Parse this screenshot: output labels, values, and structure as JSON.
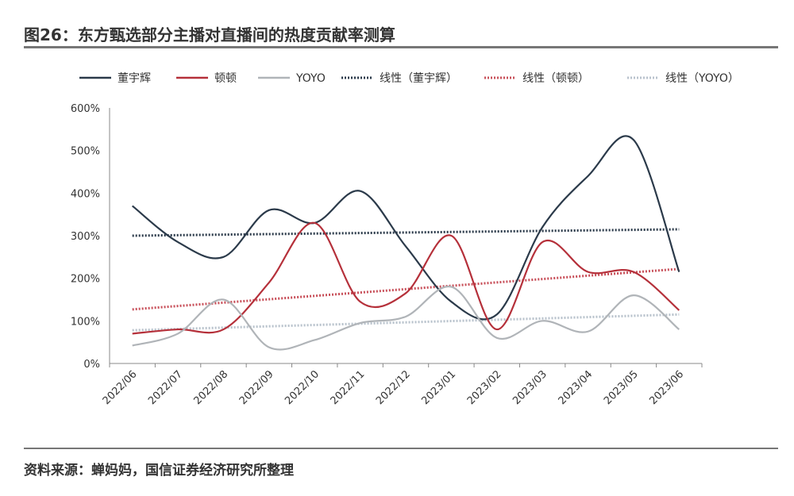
{
  "title": "图26：东方甄选部分主播对直播间的热度贡献率测算",
  "source": "资料来源：蝉妈妈，国信证券经济研究所整理",
  "chart_data": {
    "type": "line",
    "categories": [
      "2022/06",
      "2022/07",
      "2022/08",
      "2022/09",
      "2022/10",
      "2022/11",
      "2022/12",
      "2023/01",
      "2023/02",
      "2023/03",
      "2023/04",
      "2023/05",
      "2023/06"
    ],
    "ylim": [
      0,
      600
    ],
    "yticks": [
      "0%",
      "100%",
      "200%",
      "300%",
      "400%",
      "500%",
      "600%"
    ],
    "y_unit": "%",
    "legend_position": "top",
    "grid": false,
    "series": [
      {
        "name": "董宇辉",
        "color": "#2b3a4a",
        "values": [
          370,
          285,
          250,
          360,
          330,
          405,
          275,
          145,
          115,
          320,
          440,
          525,
          215
        ]
      },
      {
        "name": "顿顿",
        "color": "#b5303a",
        "values": [
          70,
          80,
          80,
          190,
          330,
          145,
          165,
          300,
          80,
          285,
          215,
          215,
          125
        ]
      },
      {
        "name": "YOYO",
        "color": "#b0b4b8",
        "values": [
          42,
          70,
          150,
          38,
          55,
          95,
          110,
          180,
          60,
          100,
          75,
          160,
          80
        ]
      }
    ],
    "trendlines": [
      {
        "name": "线性（董宇辉）",
        "color": "#2b3a4a",
        "start": 300,
        "end": 315
      },
      {
        "name": "线性（顿顿）",
        "color": "#c8505a",
        "start": 127,
        "end": 222
      },
      {
        "name": "线性（YOYO）",
        "color": "#b8c2cc",
        "start": 78,
        "end": 115
      }
    ]
  }
}
